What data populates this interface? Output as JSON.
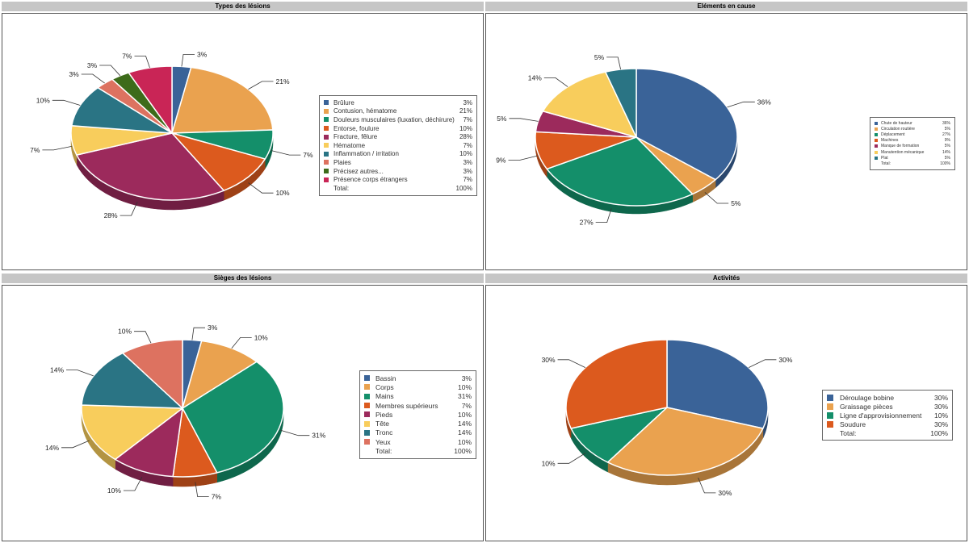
{
  "chart_data": [
    {
      "type": "pie",
      "title": "Types des lésions",
      "categories": [
        "Brûlure",
        "Contusion, hématome",
        "Douleurs musculaires (luxation, déchirure)",
        "Entorse, foulure",
        "Fracture, fêlure",
        "Hématome",
        "Inflammation / irritation",
        "Plaies",
        "Précisez autres...",
        "Présence corps étrangers"
      ],
      "values": [
        3,
        21,
        7,
        10,
        28,
        7,
        10,
        3,
        3,
        7
      ],
      "labels": [
        "3%",
        "21%",
        "7%",
        "10%",
        "28%",
        "7%",
        "10%",
        "3%",
        "3%",
        "7%"
      ],
      "colors": [
        "#3a6398",
        "#eaa24f",
        "#148f6a",
        "#dc5a1e",
        "#9c2a5c",
        "#f8cd5c",
        "#2a7484",
        "#dd7260",
        "#3d6b1a",
        "#c92556"
      ],
      "total_label": "Total:",
      "total_value": "100%",
      "legend_position": "right"
    },
    {
      "type": "pie",
      "title": "Eléments en cause",
      "categories": [
        "Chute de hauteur",
        "Circulation routière",
        "Déplacement",
        "Machines",
        "Manque de formation",
        "Manutention mécanique",
        "Plat"
      ],
      "values": [
        36,
        5,
        27,
        9,
        5,
        14,
        5
      ],
      "labels": [
        "36%",
        "5%",
        "27%",
        "9%",
        "5%",
        "14%",
        "5%"
      ],
      "colors": [
        "#3a6398",
        "#eaa24f",
        "#148f6a",
        "#dc5a1e",
        "#9c2a5c",
        "#f8cd5c",
        "#2a7484"
      ],
      "total_label": "Total:",
      "total_value": "100%",
      "legend_position": "right"
    },
    {
      "type": "pie",
      "title": "Sièges des lésions",
      "categories": [
        "Bassin",
        "Corps",
        "Mains",
        "Membres supérieurs",
        "Pieds",
        "Tête",
        "Tronc",
        "Yeux"
      ],
      "values": [
        3,
        10,
        31,
        7,
        10,
        14,
        14,
        10
      ],
      "labels": [
        "3%",
        "10%",
        "31%",
        "7%",
        "10%",
        "14%",
        "14%",
        "10%"
      ],
      "colors": [
        "#3a6398",
        "#eaa24f",
        "#148f6a",
        "#dc5a1e",
        "#9c2a5c",
        "#f8cd5c",
        "#2a7484",
        "#dd7260"
      ],
      "total_label": "Total:",
      "total_value": "100%",
      "legend_position": "right"
    },
    {
      "type": "pie",
      "title": "Activités",
      "categories": [
        "Déroulage bobine",
        "Graissage pièces",
        "Ligne d'approvisionnement",
        "Soudure"
      ],
      "values": [
        30,
        30,
        10,
        30
      ],
      "labels": [
        "30%",
        "30%",
        "10%",
        "30%"
      ],
      "colors": [
        "#3a6398",
        "#eaa24f",
        "#148f6a",
        "#dc5a1e"
      ],
      "total_label": "Total:",
      "total_value": "100%",
      "legend_position": "right"
    }
  ]
}
